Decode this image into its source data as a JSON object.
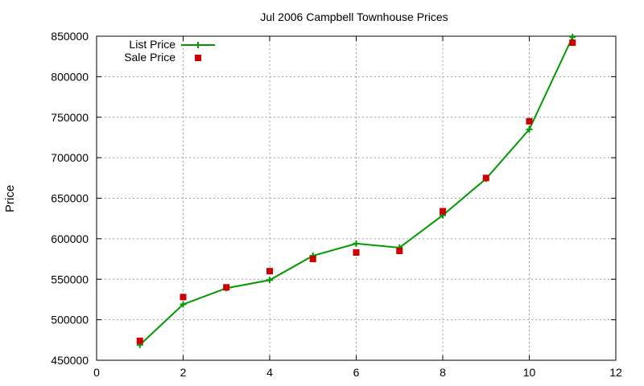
{
  "chart_data": {
    "type": "line",
    "title": "Jul 2006 Campbell Townhouse Prices",
    "xlabel": "",
    "ylabel": "Price",
    "xlim": [
      0,
      12
    ],
    "ylim": [
      450000,
      850000
    ],
    "x_ticks": [
      "0",
      "2",
      "4",
      "6",
      "8",
      "10",
      "12"
    ],
    "y_ticks": [
      "450000",
      "500000",
      "550000",
      "600000",
      "650000",
      "700000",
      "750000",
      "800000",
      "850000"
    ],
    "grid": true,
    "legend_position": "top-left",
    "series": [
      {
        "name": "List Price",
        "style": "line-plus",
        "color": "#009900",
        "x": [
          1,
          2,
          3,
          4,
          5,
          6,
          7,
          8,
          9,
          10,
          11
        ],
        "y": [
          469000,
          519000,
          539000,
          549000,
          579000,
          594000,
          589000,
          629000,
          674000,
          735000,
          849000
        ]
      },
      {
        "name": "Sale Price",
        "style": "square-points",
        "color": "#cc0000",
        "x": [
          1,
          2,
          3,
          4,
          5,
          6,
          7,
          8,
          9,
          10,
          11
        ],
        "y": [
          474000,
          528000,
          540000,
          560000,
          575000,
          583000,
          585000,
          634000,
          675000,
          745000,
          842000
        ]
      }
    ]
  }
}
